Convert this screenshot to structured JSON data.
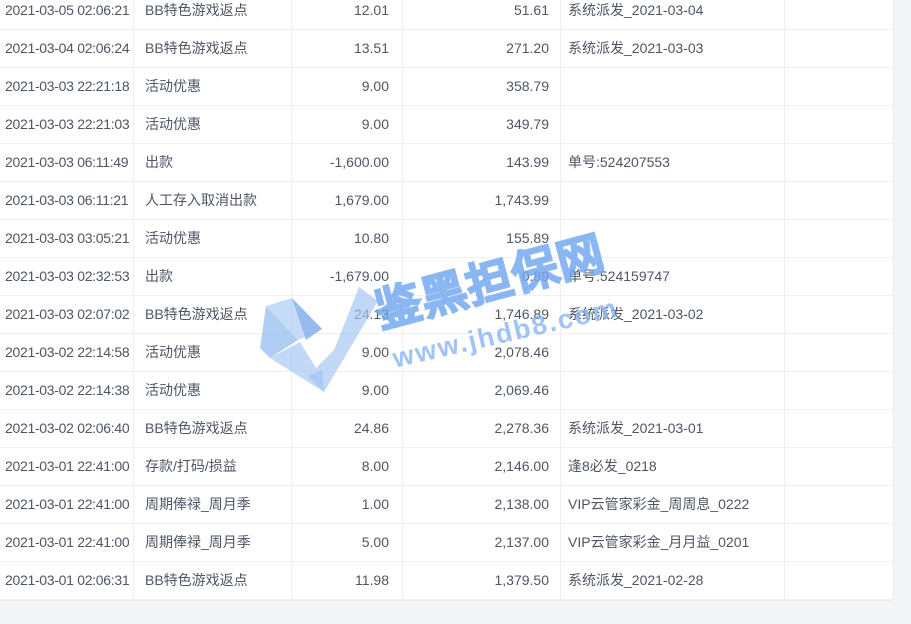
{
  "page": {
    "background": "#f4f5f7",
    "table_background": "#ffffff",
    "grid_line_color": "#eef0f3",
    "text_color": "#4e5665"
  },
  "watermark": {
    "title": "鉴黑担保网",
    "url": "www.jhdb8.com",
    "logo": "blue-ribbon-check-logo",
    "color": "#7dadf0"
  },
  "table": {
    "columns": [
      {
        "key": "time",
        "align": "left"
      },
      {
        "key": "type",
        "align": "left"
      },
      {
        "key": "amount",
        "align": "right"
      },
      {
        "key": "balance",
        "align": "right"
      },
      {
        "key": "remark",
        "align": "left"
      },
      {
        "key": "extra",
        "align": "left"
      }
    ],
    "rows": [
      {
        "time": "2021-03-05 02:06:21",
        "type": "BB特色游戏返点",
        "amount": "12.01",
        "balance": "51.61",
        "remark": "系统派发_2021-03-04",
        "extra": ""
      },
      {
        "time": "2021-03-04 02:06:24",
        "type": "BB特色游戏返点",
        "amount": "13.51",
        "balance": "271.20",
        "remark": "系统派发_2021-03-03",
        "extra": ""
      },
      {
        "time": "2021-03-03 22:21:18",
        "type": "活动优惠",
        "amount": "9.00",
        "balance": "358.79",
        "remark": "",
        "extra": ""
      },
      {
        "time": "2021-03-03 22:21:03",
        "type": "活动优惠",
        "amount": "9.00",
        "balance": "349.79",
        "remark": "",
        "extra": ""
      },
      {
        "time": "2021-03-03 06:11:49",
        "type": "出款",
        "amount": "-1,600.00",
        "balance": "143.99",
        "remark": "单号:524207553",
        "extra": ""
      },
      {
        "time": "2021-03-03 06:11:21",
        "type": "人工存入取消出款",
        "amount": "1,679.00",
        "balance": "1,743.99",
        "remark": "",
        "extra": ""
      },
      {
        "time": "2021-03-03 03:05:21",
        "type": "活动优惠",
        "amount": "10.80",
        "balance": "155.89",
        "remark": "",
        "extra": ""
      },
      {
        "time": "2021-03-03 02:32:53",
        "type": "出款",
        "amount": "-1,679.00",
        "balance": "0.89",
        "remark": "单号:524159747",
        "extra": ""
      },
      {
        "time": "2021-03-03 02:07:02",
        "type": "BB特色游戏返点",
        "amount": "24.13",
        "balance": "1,746.89",
        "remark": "系统派发_2021-03-02",
        "extra": ""
      },
      {
        "time": "2021-03-02 22:14:58",
        "type": "活动优惠",
        "amount": "9.00",
        "balance": "2,078.46",
        "remark": "",
        "extra": ""
      },
      {
        "time": "2021-03-02 22:14:38",
        "type": "活动优惠",
        "amount": "9.00",
        "balance": "2,069.46",
        "remark": "",
        "extra": ""
      },
      {
        "time": "2021-03-02 02:06:40",
        "type": "BB特色游戏返点",
        "amount": "24.86",
        "balance": "2,278.36",
        "remark": "系统派发_2021-03-01",
        "extra": ""
      },
      {
        "time": "2021-03-01 22:41:00",
        "type": "存款/打码/损益",
        "amount": "8.00",
        "balance": "2,146.00",
        "remark": "逢8必发_0218",
        "extra": ""
      },
      {
        "time": "2021-03-01 22:41:00",
        "type": "周期俸禄_周月季",
        "amount": "1.00",
        "balance": "2,138.00",
        "remark": "VIP云管家彩金_周周息_0222",
        "extra": ""
      },
      {
        "time": "2021-03-01 22:41:00",
        "type": "周期俸禄_周月季",
        "amount": "5.00",
        "balance": "2,137.00",
        "remark": "VIP云管家彩金_月月益_0201",
        "extra": ""
      },
      {
        "time": "2021-03-01 02:06:31",
        "type": "BB特色游戏返点",
        "amount": "11.98",
        "balance": "1,379.50",
        "remark": "系统派发_2021-02-28",
        "extra": ""
      }
    ]
  }
}
